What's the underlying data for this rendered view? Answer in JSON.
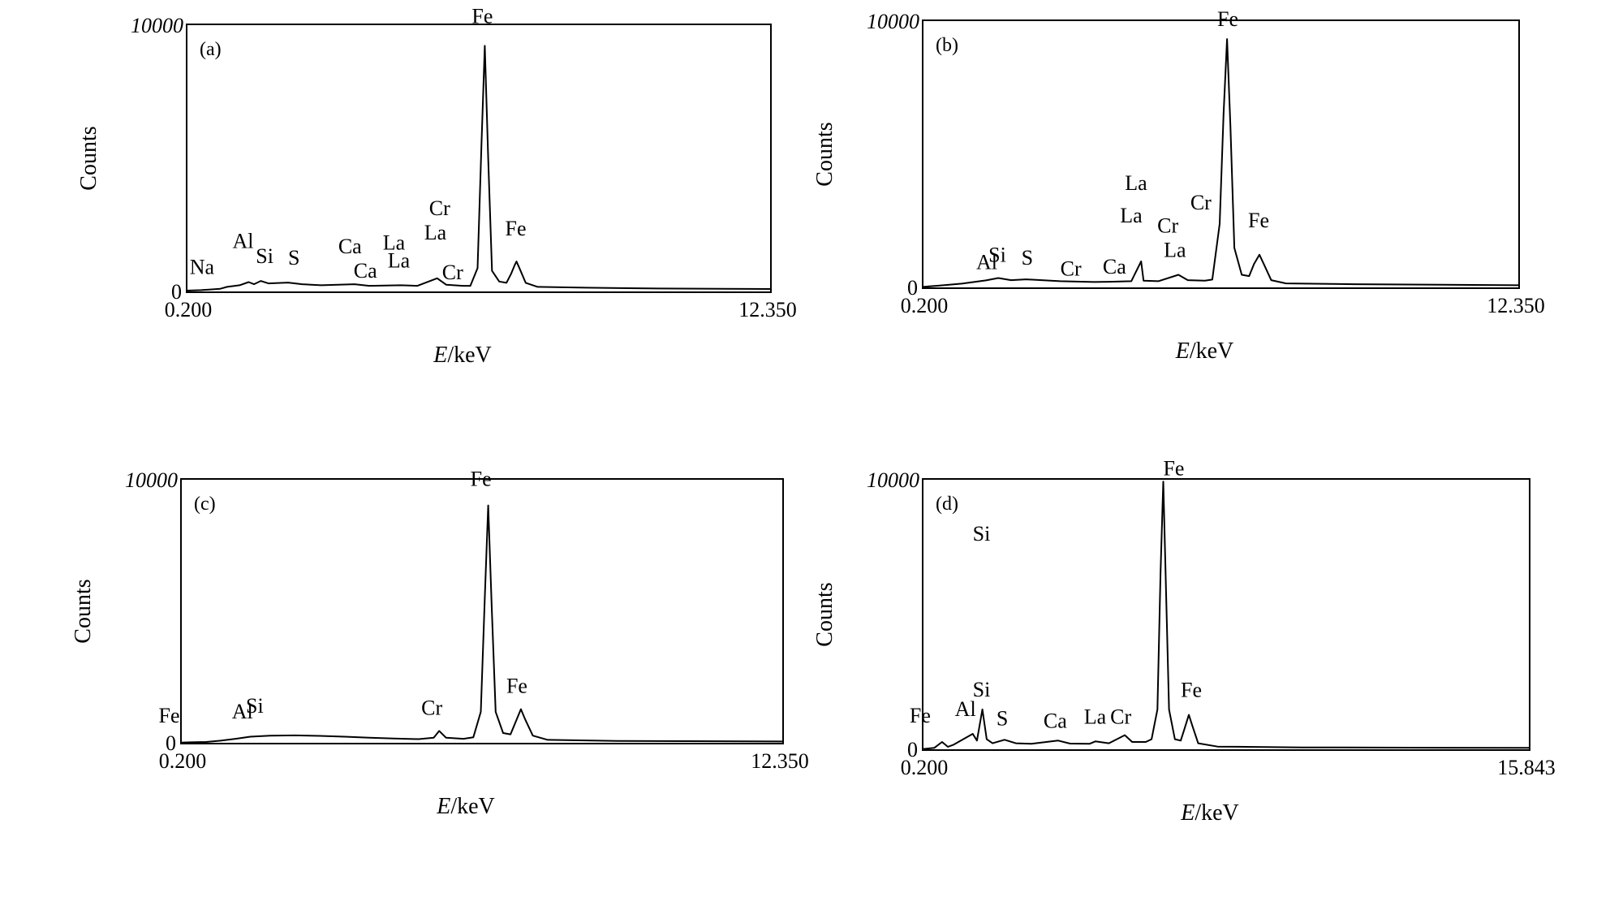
{
  "chart_data": [
    {
      "type": "line",
      "panel_label": "(a)",
      "ylabel": "Counts",
      "xlabel_italic": "E",
      "xlabel_unit": "/keV",
      "x_range": [
        0.2,
        12.35
      ],
      "y_range": [
        0,
        10000
      ],
      "x_tick_labels": [
        "0.200",
        "12.350"
      ],
      "y_tick_labels": [
        "0",
        "10000"
      ],
      "spectrum": [
        [
          0.2,
          60
        ],
        [
          0.5,
          80
        ],
        [
          0.9,
          130
        ],
        [
          1.04,
          200
        ],
        [
          1.3,
          260
        ],
        [
          1.49,
          380
        ],
        [
          1.6,
          300
        ],
        [
          1.74,
          420
        ],
        [
          1.9,
          330
        ],
        [
          2.31,
          360
        ],
        [
          2.6,
          300
        ],
        [
          3.0,
          260
        ],
        [
          3.69,
          300
        ],
        [
          4.0,
          240
        ],
        [
          4.65,
          260
        ],
        [
          5.0,
          240
        ],
        [
          5.41,
          520
        ],
        [
          5.6,
          280
        ],
        [
          5.95,
          240
        ],
        [
          6.1,
          240
        ],
        [
          6.25,
          900
        ],
        [
          6.33,
          5500
        ],
        [
          6.4,
          9200
        ],
        [
          6.47,
          5000
        ],
        [
          6.55,
          800
        ],
        [
          6.7,
          400
        ],
        [
          6.85,
          350
        ],
        [
          6.95,
          700
        ],
        [
          7.02,
          1000
        ],
        [
          7.06,
          1150
        ],
        [
          7.12,
          900
        ],
        [
          7.25,
          350
        ],
        [
          7.5,
          200
        ],
        [
          8.5,
          170
        ],
        [
          10,
          140
        ],
        [
          12.35,
          120
        ]
      ],
      "peak_labels": [
        {
          "text": "Na",
          "x": 1.04,
          "y": 200
        },
        {
          "text": "Al",
          "x": 1.49,
          "y": 380
        },
        {
          "text": "Si",
          "x": 1.74,
          "y": 420
        },
        {
          "text": "S",
          "x": 2.31,
          "y": 360
        },
        {
          "text": "Ca",
          "x": 3.69,
          "y": 300
        },
        {
          "text": "Ca",
          "x": 4.01,
          "y": 300
        },
        {
          "text": "La",
          "x": 4.65,
          "y": 260
        },
        {
          "text": "La",
          "x": 4.65,
          "y": 260
        },
        {
          "text": "La",
          "x": 5.41,
          "y": 520
        },
        {
          "text": "Cr",
          "x": 5.41,
          "y": 520
        },
        {
          "text": "Cr",
          "x": 5.95,
          "y": 240
        },
        {
          "text": "Fe",
          "x": 6.4,
          "y": 9200
        },
        {
          "text": "Fe",
          "x": 7.06,
          "y": 1150
        }
      ]
    },
    {
      "type": "line",
      "panel_label": "(b)",
      "ylabel": "Counts",
      "xlabel_italic": "E",
      "xlabel_unit": "/keV",
      "x_range": [
        0.2,
        12.35
      ],
      "y_range": [
        0,
        10000
      ],
      "x_tick_labels": [
        "0.200",
        "12.350"
      ],
      "y_tick_labels": [
        "0",
        "10000"
      ],
      "spectrum": [
        [
          0.2,
          50
        ],
        [
          0.5,
          90
        ],
        [
          1.0,
          170
        ],
        [
          1.49,
          290
        ],
        [
          1.74,
          380
        ],
        [
          2.0,
          300
        ],
        [
          2.31,
          330
        ],
        [
          3.0,
          260
        ],
        [
          3.69,
          230
        ],
        [
          4.0,
          240
        ],
        [
          4.45,
          260
        ],
        [
          4.65,
          1000
        ],
        [
          4.7,
          280
        ],
        [
          5.0,
          260
        ],
        [
          5.41,
          500
        ],
        [
          5.6,
          300
        ],
        [
          5.95,
          280
        ],
        [
          6.1,
          320
        ],
        [
          6.25,
          2400
        ],
        [
          6.33,
          6500
        ],
        [
          6.4,
          9300
        ],
        [
          6.47,
          6000
        ],
        [
          6.55,
          1500
        ],
        [
          6.7,
          500
        ],
        [
          6.85,
          450
        ],
        [
          6.95,
          900
        ],
        [
          7.06,
          1250
        ],
        [
          7.15,
          900
        ],
        [
          7.3,
          300
        ],
        [
          7.6,
          180
        ],
        [
          9,
          150
        ],
        [
          12.35,
          110
        ]
      ],
      "peak_labels": [
        {
          "text": "Al",
          "x": 1.49,
          "y": 290
        },
        {
          "text": "Si",
          "x": 1.74,
          "y": 380
        },
        {
          "text": "S",
          "x": 2.31,
          "y": 330
        },
        {
          "text": "Cr",
          "x": 3.5,
          "y": 230
        },
        {
          "text": "Ca",
          "x": 4.0,
          "y": 240
        },
        {
          "text": "La",
          "x": 4.65,
          "y": 1000
        },
        {
          "text": "La",
          "x": 4.65,
          "y": 1000
        },
        {
          "text": "Cr",
          "x": 5.41,
          "y": 500
        },
        {
          "text": "La",
          "x": 5.41,
          "y": 500
        },
        {
          "text": "Cr",
          "x": 5.95,
          "y": 280
        },
        {
          "text": "Fe",
          "x": 6.4,
          "y": 9300
        },
        {
          "text": "Fe",
          "x": 7.06,
          "y": 1250
        }
      ]
    },
    {
      "type": "line",
      "panel_label": "(c)",
      "ylabel": "Counts",
      "xlabel_italic": "E",
      "xlabel_unit": "/keV",
      "x_range": [
        0.2,
        12.35
      ],
      "y_range": [
        0,
        10000
      ],
      "x_tick_labels": [
        "0.200",
        "12.350"
      ],
      "y_tick_labels": [
        "0",
        "10000"
      ],
      "spectrum": [
        [
          0.2,
          40
        ],
        [
          0.4,
          50
        ],
        [
          0.7,
          60
        ],
        [
          1.0,
          110
        ],
        [
          1.3,
          180
        ],
        [
          1.6,
          260
        ],
        [
          2.0,
          300
        ],
        [
          2.5,
          310
        ],
        [
          3.0,
          290
        ],
        [
          3.5,
          260
        ],
        [
          4.0,
          220
        ],
        [
          4.5,
          190
        ],
        [
          5.0,
          170
        ],
        [
          5.3,
          220
        ],
        [
          5.41,
          480
        ],
        [
          5.55,
          220
        ],
        [
          5.9,
          180
        ],
        [
          6.1,
          240
        ],
        [
          6.25,
          1200
        ],
        [
          6.33,
          5500
        ],
        [
          6.4,
          9000
        ],
        [
          6.47,
          5200
        ],
        [
          6.55,
          1200
        ],
        [
          6.7,
          400
        ],
        [
          6.85,
          350
        ],
        [
          6.95,
          800
        ],
        [
          7.06,
          1300
        ],
        [
          7.15,
          900
        ],
        [
          7.3,
          300
        ],
        [
          7.6,
          140
        ],
        [
          9,
          100
        ],
        [
          12.35,
          80
        ]
      ],
      "peak_labels": [
        {
          "text": "Fe",
          "x": 0.7,
          "y": 60
        },
        {
          "text": "Al",
          "x": 1.49,
          "y": 220
        },
        {
          "text": "Si",
          "x": 1.74,
          "y": 240
        },
        {
          "text": "Cr",
          "x": 5.41,
          "y": 480
        },
        {
          "text": "Fe",
          "x": 6.4,
          "y": 9000
        },
        {
          "text": "Fe",
          "x": 7.06,
          "y": 1300
        }
      ]
    },
    {
      "type": "line",
      "panel_label": "(d)",
      "ylabel": "Counts",
      "xlabel_italic": "E",
      "xlabel_unit": "/keV",
      "x_range": [
        0.2,
        15.843
      ],
      "y_range": [
        0,
        10000
      ],
      "x_tick_labels": [
        "0.200",
        "15.843"
      ],
      "y_tick_labels": [
        "0",
        "10000"
      ],
      "spectrum": [
        [
          0.2,
          40
        ],
        [
          0.5,
          80
        ],
        [
          0.7,
          300
        ],
        [
          0.85,
          120
        ],
        [
          1.0,
          200
        ],
        [
          1.49,
          600
        ],
        [
          1.6,
          350
        ],
        [
          1.74,
          1500
        ],
        [
          1.85,
          400
        ],
        [
          2.0,
          250
        ],
        [
          2.31,
          380
        ],
        [
          2.6,
          250
        ],
        [
          3.0,
          230
        ],
        [
          3.69,
          350
        ],
        [
          4.0,
          240
        ],
        [
          4.5,
          230
        ],
        [
          4.65,
          320
        ],
        [
          5.0,
          250
        ],
        [
          5.41,
          550
        ],
        [
          5.6,
          300
        ],
        [
          5.95,
          300
        ],
        [
          6.1,
          400
        ],
        [
          6.25,
          1500
        ],
        [
          6.33,
          6500
        ],
        [
          6.4,
          9900
        ],
        [
          6.47,
          6000
        ],
        [
          6.55,
          1500
        ],
        [
          6.7,
          400
        ],
        [
          6.85,
          350
        ],
        [
          6.95,
          800
        ],
        [
          7.06,
          1300
        ],
        [
          7.15,
          900
        ],
        [
          7.3,
          250
        ],
        [
          7.8,
          130
        ],
        [
          10,
          100
        ],
        [
          15.843,
          80
        ]
      ],
      "peak_labels": [
        {
          "text": "Fe",
          "x": 0.7,
          "y": 300
        },
        {
          "text": "Al",
          "x": 1.49,
          "y": 600
        },
        {
          "text": "Si",
          "x": 1.74,
          "y": 1500
        },
        {
          "text": "Si",
          "x": 1.74,
          "y": 1500
        },
        {
          "text": "S",
          "x": 2.31,
          "y": 380
        },
        {
          "text": "Ca",
          "x": 3.69,
          "y": 350
        },
        {
          "text": "La",
          "x": 4.65,
          "y": 320
        },
        {
          "text": "Cr",
          "x": 5.41,
          "y": 550
        },
        {
          "text": "Fe",
          "x": 6.4,
          "y": 9900
        },
        {
          "text": "Fe",
          "x": 7.06,
          "y": 1300
        }
      ]
    }
  ]
}
